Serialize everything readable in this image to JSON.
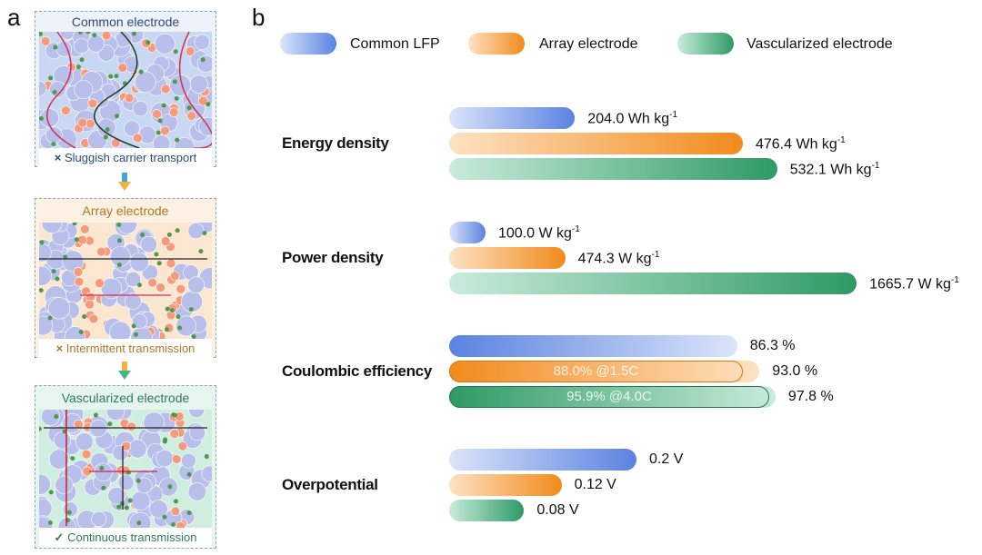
{
  "panel_a": {
    "label": "a",
    "boxes": [
      {
        "title": "Common electrode",
        "caption_mark": "×",
        "caption": "Sluggish carrier transport"
      },
      {
        "title": "Array electrode",
        "caption_mark": "×",
        "caption": "Intermittent transmission"
      },
      {
        "title": "Vascularized electrode",
        "caption_mark": "✓",
        "caption": "Continuous transmission"
      }
    ]
  },
  "colors": {
    "blue": "#5a82e0",
    "orange": "#f28a1c",
    "green": "#2e9a63"
  },
  "chart_data": {
    "type": "bar",
    "panel_label": "b",
    "orientation": "horizontal",
    "legend": [
      "Common LFP",
      "Array electrode",
      "Vascularized electrode"
    ],
    "legend_placement": "top",
    "categories": [
      {
        "name": "Energy density",
        "unit": "Wh kg",
        "unit_sup": "-1",
        "values": [
          204.0,
          476.4,
          532.1
        ],
        "labels": [
          "204.0",
          "476.4",
          "532.1"
        ]
      },
      {
        "name": "Power density",
        "unit": "W kg",
        "unit_sup": "-1",
        "values": [
          100.0,
          474.3,
          1665.7
        ],
        "labels": [
          "100.0",
          "474.3",
          "1665.7"
        ]
      },
      {
        "name": "Coulombic efficiency",
        "unit": "%",
        "unit_sup": "",
        "values": [
          86.3,
          93.0,
          97.8
        ],
        "labels": [
          "86.3",
          "93.0",
          "97.8"
        ],
        "inner_values": [
          null,
          88.0,
          95.9
        ],
        "inner_labels": [
          null,
          "88.0% @1.5C",
          "95.9% @4.0C"
        ]
      },
      {
        "name": "Overpotential",
        "unit": "V",
        "unit_sup": "",
        "values": [
          0.2,
          0.12,
          0.08
        ],
        "labels": [
          "0.2",
          "0.12",
          "0.08"
        ]
      }
    ]
  }
}
